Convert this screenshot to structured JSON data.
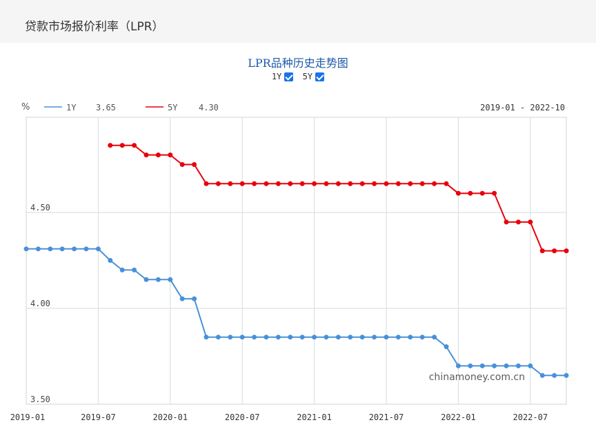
{
  "page": {
    "title": "贷款市场报价利率（LPR）"
  },
  "watermark": "chinamoney.com.cn",
  "chart_data": {
    "type": "line",
    "title": "LPR品种历史走势图",
    "toggles": [
      {
        "label": "1Y",
        "checked": true
      },
      {
        "label": "5Y",
        "checked": true
      }
    ],
    "y_unit": "%",
    "date_range": "2019-01 - 2022-10",
    "ylim": [
      3.5,
      5.0
    ],
    "y_ticks": [
      {
        "value": 3.5,
        "label": "3.50"
      },
      {
        "value": 4.0,
        "label": "4.00"
      },
      {
        "value": 4.5,
        "label": "4.50"
      }
    ],
    "x_start": "2019-01",
    "x_end": "2022-10",
    "x_ticks": [
      "2019-01",
      "2019-07",
      "2020-01",
      "2020-07",
      "2021-01",
      "2021-07",
      "2022-01",
      "2022-07"
    ],
    "colors": {
      "1Y": "#4a90d9",
      "5Y": "#e8000b"
    },
    "series": [
      {
        "name": "1Y",
        "latest": "3.65",
        "values": [
          4.31,
          4.31,
          4.31,
          4.31,
          4.31,
          4.31,
          4.31,
          4.25,
          4.2,
          4.2,
          4.15,
          4.15,
          4.15,
          4.05,
          4.05,
          3.85,
          3.85,
          3.85,
          3.85,
          3.85,
          3.85,
          3.85,
          3.85,
          3.85,
          3.85,
          3.85,
          3.85,
          3.85,
          3.85,
          3.85,
          3.85,
          3.85,
          3.85,
          3.85,
          3.85,
          3.8,
          3.7,
          3.7,
          3.7,
          3.7,
          3.7,
          3.7,
          3.7,
          3.65,
          3.65,
          3.65
        ]
      },
      {
        "name": "5Y",
        "latest": "4.30",
        "values": [
          null,
          null,
          null,
          null,
          null,
          null,
          null,
          4.85,
          4.85,
          4.85,
          4.8,
          4.8,
          4.8,
          4.75,
          4.75,
          4.65,
          4.65,
          4.65,
          4.65,
          4.65,
          4.65,
          4.65,
          4.65,
          4.65,
          4.65,
          4.65,
          4.65,
          4.65,
          4.65,
          4.65,
          4.65,
          4.65,
          4.65,
          4.65,
          4.65,
          4.65,
          4.6,
          4.6,
          4.6,
          4.6,
          4.45,
          4.45,
          4.45,
          4.3,
          4.3,
          4.3
        ]
      }
    ]
  }
}
